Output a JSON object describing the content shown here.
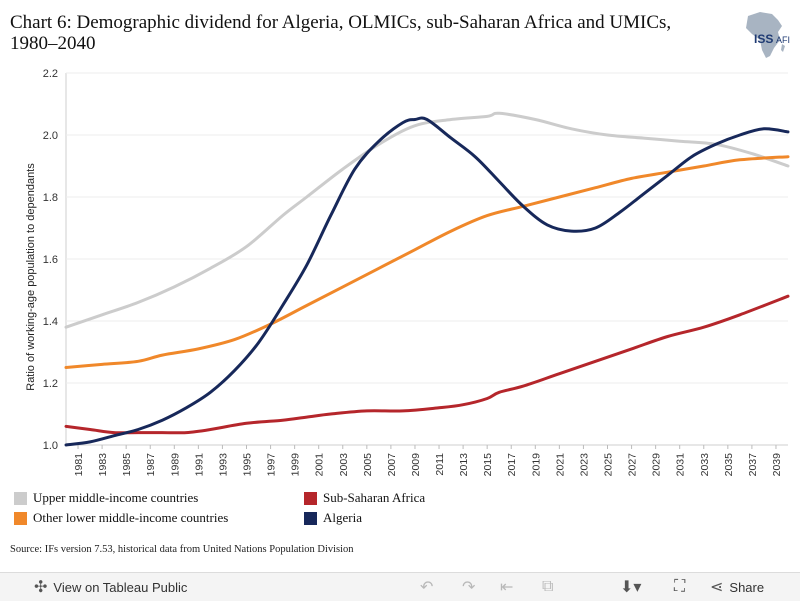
{
  "title": "Chart 6: Demographic dividend for Algeria, OLMICs, sub-Saharan Africa and UMICs, 1980–2040",
  "logo": {
    "text_iss": "ISS",
    "text_afr": "AFI"
  },
  "source": "Source: IFs version 7.53, historical data from United Nations Population Division",
  "toolbar": {
    "view_label": "View on Tableau Public",
    "share_label": "Share",
    "icons": [
      "tableau-logo-icon",
      "undo-icon",
      "redo-icon",
      "revert-icon",
      "pause-icon",
      "download-icon",
      "fullscreen-icon",
      "share-icon"
    ]
  },
  "colors": {
    "umic": "#cccccc",
    "olmic": "#f0882a",
    "ssa": "#b5262b",
    "algeria": "#17285a"
  },
  "chart_data": {
    "type": "line",
    "title": "Chart 6: Demographic dividend for Algeria, OLMICs, sub-Saharan Africa and UMICs, 1980–2040",
    "xlabel": "",
    "ylabel": "Ratio of working-age population to dependants",
    "ylim": [
      1.0,
      2.2
    ],
    "xlim": [
      1980,
      2040
    ],
    "yticks": [
      "1.0",
      "1.2",
      "1.4",
      "1.6",
      "1.8",
      "2.0",
      "2.2"
    ],
    "xticks": [
      "1981",
      "1983",
      "1985",
      "1987",
      "1989",
      "1991",
      "1993",
      "1995",
      "1997",
      "1999",
      "2001",
      "2003",
      "2005",
      "2007",
      "2009",
      "2011",
      "2013",
      "2015",
      "2017",
      "2019",
      "2021",
      "2023",
      "2025",
      "2027",
      "2029",
      "2031",
      "2033",
      "2035",
      "2037",
      "2039"
    ],
    "legend_placement": "bottom",
    "series": [
      {
        "name": "Upper middle-income countries",
        "key": "umic",
        "x": [
          1980,
          1983,
          1986,
          1989,
          1992,
          1995,
          1998,
          2000,
          2003,
          2006,
          2009,
          2012,
          2015,
          2016,
          2019,
          2022,
          2025,
          2028,
          2031,
          2034,
          2037,
          2040
        ],
        "values": [
          1.38,
          1.42,
          1.46,
          1.51,
          1.57,
          1.64,
          1.74,
          1.8,
          1.89,
          1.97,
          2.03,
          2.05,
          2.06,
          2.07,
          2.05,
          2.02,
          2.0,
          1.99,
          1.98,
          1.97,
          1.94,
          1.9
        ]
      },
      {
        "name": "Other lower middle-income countries",
        "key": "olmic",
        "x": [
          1980,
          1983,
          1986,
          1988,
          1991,
          1994,
          1997,
          2000,
          2003,
          2006,
          2009,
          2012,
          2015,
          2018,
          2021,
          2024,
          2027,
          2030,
          2033,
          2036,
          2040
        ],
        "values": [
          1.25,
          1.26,
          1.27,
          1.29,
          1.31,
          1.34,
          1.39,
          1.45,
          1.51,
          1.57,
          1.63,
          1.69,
          1.74,
          1.77,
          1.8,
          1.83,
          1.86,
          1.88,
          1.9,
          1.92,
          1.93
        ]
      },
      {
        "name": "Sub-Saharan Africa",
        "key": "ssa",
        "x": [
          1980,
          1982,
          1984,
          1986,
          1988,
          1990,
          1992,
          1995,
          1998,
          2000,
          2002,
          2005,
          2008,
          2011,
          2013,
          2015,
          2016,
          2018,
          2021,
          2024,
          2027,
          2030,
          2033,
          2036,
          2040
        ],
        "values": [
          1.06,
          1.05,
          1.04,
          1.04,
          1.04,
          1.04,
          1.05,
          1.07,
          1.08,
          1.09,
          1.1,
          1.11,
          1.11,
          1.12,
          1.13,
          1.15,
          1.17,
          1.19,
          1.23,
          1.27,
          1.31,
          1.35,
          1.38,
          1.42,
          1.48
        ]
      },
      {
        "name": "Algeria",
        "key": "algeria",
        "x": [
          1980,
          1982,
          1984,
          1986,
          1988,
          1990,
          1992,
          1994,
          1996,
          1998,
          2000,
          2002,
          2004,
          2006,
          2008,
          2009,
          2010,
          2012,
          2014,
          2016,
          2018,
          2020,
          2022,
          2024,
          2026,
          2028,
          2030,
          2032,
          2034,
          2036,
          2038,
          2040
        ],
        "values": [
          1.0,
          1.01,
          1.03,
          1.05,
          1.08,
          1.12,
          1.17,
          1.24,
          1.33,
          1.45,
          1.58,
          1.74,
          1.89,
          1.98,
          2.04,
          2.05,
          2.05,
          1.99,
          1.93,
          1.85,
          1.77,
          1.71,
          1.69,
          1.7,
          1.75,
          1.81,
          1.87,
          1.93,
          1.97,
          2.0,
          2.02,
          2.01
        ]
      }
    ]
  }
}
